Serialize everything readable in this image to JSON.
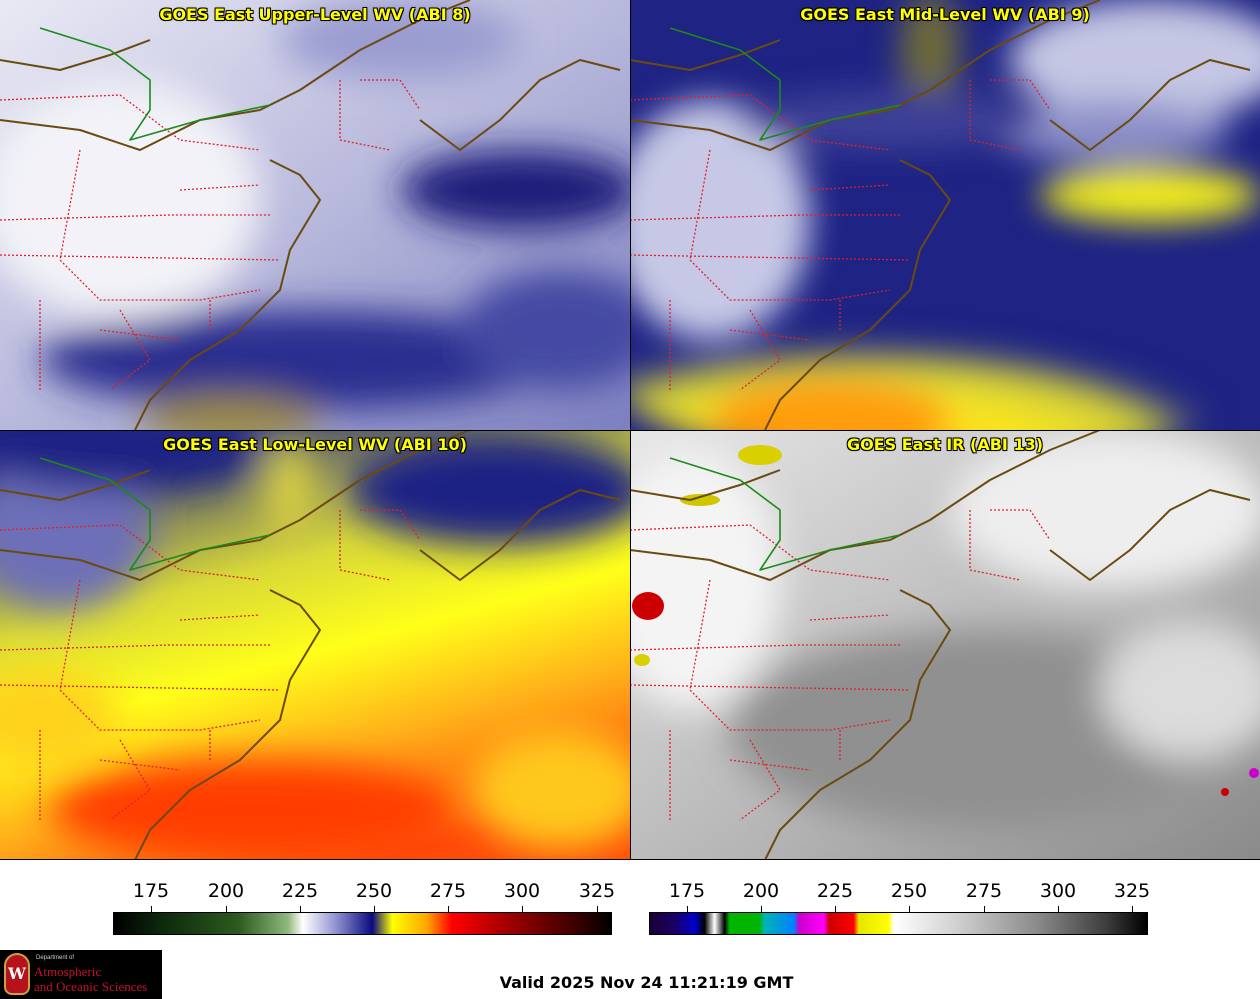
{
  "panels": [
    {
      "title": "GOES East Upper-Level WV (ABI 8)"
    },
    {
      "title": "GOES East Mid-Level WV (ABI 9)"
    },
    {
      "title": "GOES East Low-Level WV (ABI 10)"
    },
    {
      "title": "GOES East IR (ABI 13)"
    }
  ],
  "colorbars": [
    {
      "ticks": [
        "175",
        "200",
        "225",
        "250",
        "275",
        "300",
        "325"
      ]
    },
    {
      "ticks": [
        "175",
        "200",
        "225",
        "250",
        "275",
        "300",
        "325"
      ]
    }
  ],
  "logo": {
    "dept": "Department of",
    "line1": "Atmospheric",
    "line2": "and Oceanic Sciences",
    "seal": "W"
  },
  "valid": "Valid 2025 Nov 24 11:21:19 GMT",
  "colors": {
    "title": "#ffff00",
    "state_border": "#e0202a",
    "coast": "#6b4a10",
    "canada_border": "#1a8a1a"
  }
}
